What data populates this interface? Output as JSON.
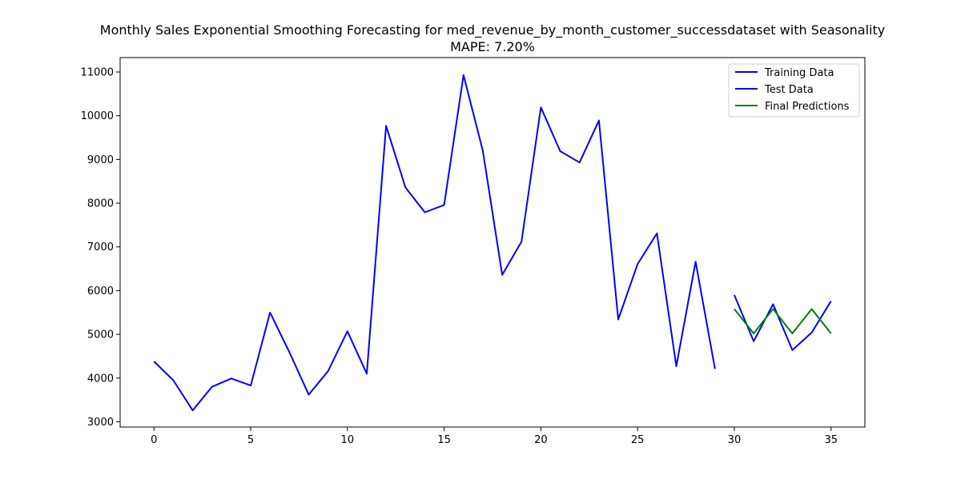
{
  "chart_data": {
    "type": "line",
    "title": "Monthly Sales Exponential Smoothing Forecasting for med_revenue_by_month_customer_successdataset with Seasonality",
    "subtitle": "MAPE: 7.20%",
    "xlabel": "",
    "ylabel": "",
    "xlim": [
      -1.75,
      36.75
    ],
    "ylim": [
      2880,
      11330
    ],
    "x_ticks": [
      0,
      5,
      10,
      15,
      20,
      25,
      30,
      35
    ],
    "y_ticks": [
      3000,
      4000,
      5000,
      6000,
      7000,
      8000,
      9000,
      10000,
      11000
    ],
    "grid": false,
    "legend_position": "top-right",
    "series": [
      {
        "name": "Training Data",
        "color": "#0000ff",
        "x": [
          0,
          1,
          2,
          3,
          4,
          5,
          6,
          7,
          8,
          9,
          10,
          11,
          12,
          13,
          14,
          15,
          16,
          17,
          18,
          19,
          20,
          21,
          22,
          23,
          24,
          25,
          26,
          27,
          28,
          29
        ],
        "values": [
          4380,
          3950,
          3260,
          3800,
          3990,
          3830,
          5500,
          4590,
          3620,
          4160,
          5070,
          4100,
          9770,
          8360,
          7790,
          7960,
          10930,
          9200,
          6360,
          7120,
          10190,
          9190,
          8930,
          9890,
          5340,
          6610,
          7310,
          4270,
          6660,
          4210
        ]
      },
      {
        "name": "Test Data",
        "color": "#0000ff",
        "x": [
          30,
          31,
          32,
          33,
          34,
          35
        ],
        "values": [
          5900,
          4840,
          5690,
          4640,
          5040,
          5760
        ]
      },
      {
        "name": "Final Predictions",
        "color": "#008000",
        "x": [
          30,
          31,
          32,
          33,
          34,
          35
        ],
        "values": [
          5580,
          5020,
          5580,
          5020,
          5580,
          5020
        ]
      }
    ]
  }
}
